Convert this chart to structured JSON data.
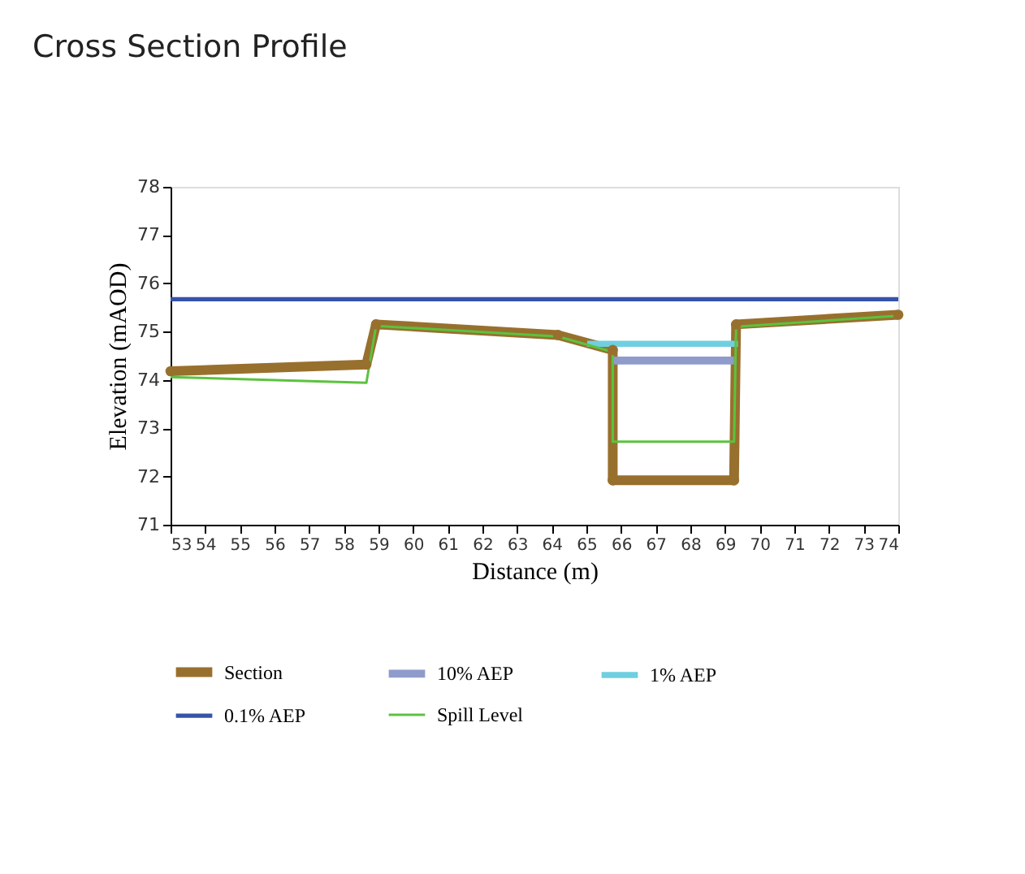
{
  "chart_data": {
    "type": "line",
    "title": "Cross Section Profile",
    "xlabel": "Distance (m)",
    "ylabel": "Elevation (mAOD)",
    "xlim": [
      53,
      74
    ],
    "xticks": [
      53,
      54,
      55,
      56,
      57,
      58,
      59,
      60,
      61,
      62,
      63,
      64,
      65,
      66,
      67,
      68,
      69,
      70,
      71,
      72,
      73,
      74
    ],
    "ylim": [
      71,
      78
    ],
    "yticks": [
      71,
      72,
      73,
      74,
      75,
      76,
      77,
      78
    ],
    "grid": false,
    "legend": "bottom",
    "series": [
      {
        "name": "Section",
        "color": "#98702e",
        "marker": "circle",
        "x": [
          53,
          58.65,
          58.93,
          64.18,
          65.76,
          65.76,
          69.26,
          69.32,
          74
        ],
        "values": [
          74.18,
          74.32,
          75.15,
          74.93,
          74.62,
          71.92,
          71.92,
          75.15,
          75.35
        ]
      },
      {
        "name": "10% AEP",
        "color": "#8e9bcb",
        "x": [
          65.76,
          69.26
        ],
        "values": [
          74.4,
          74.4
        ]
      },
      {
        "name": "1% AEP",
        "color": "#6fcfe0",
        "x": [
          65.02,
          69.37
        ],
        "values": [
          74.75,
          74.75
        ]
      },
      {
        "name": "0.1% AEP",
        "color": "#3653a8",
        "x": [
          53,
          74
        ],
        "values": [
          75.67,
          75.67
        ]
      },
      {
        "name": "Spill Level",
        "color": "#5cc23f",
        "x": [
          53,
          58.65,
          58.93,
          64.18,
          65.76,
          65.76,
          69.26,
          69.32,
          74
        ],
        "values": [
          74.06,
          73.94,
          75.12,
          74.9,
          74.58,
          72.72,
          72.72,
          75.1,
          75.33
        ]
      }
    ]
  }
}
